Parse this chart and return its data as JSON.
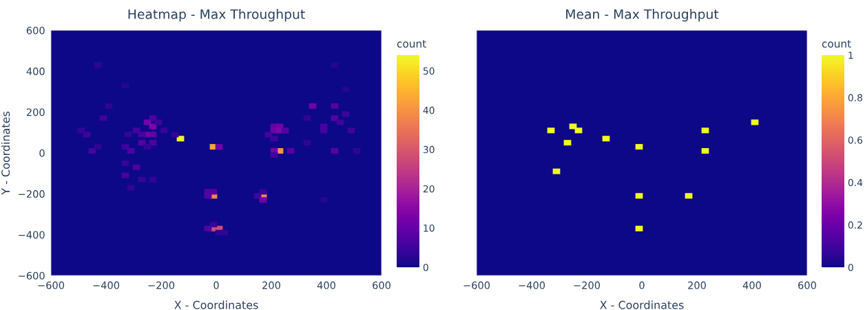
{
  "chart_data": [
    {
      "type": "scatter",
      "title": "Heatmap - Max Throughput",
      "xlabel": "X - Coordinates",
      "ylabel": "Y - Coordinates",
      "clabel": "count",
      "marker": "square",
      "grid": false,
      "legend": false,
      "xlim": [
        -600,
        600
      ],
      "ylim": [
        -600,
        600
      ],
      "xticks": [
        {
          "value": -600,
          "label": "−600"
        },
        {
          "value": -400,
          "label": "−400"
        },
        {
          "value": -200,
          "label": "−200"
        },
        0,
        200,
        400,
        600
      ],
      "yticks": [
        {
          "value": -600,
          "label": "−600"
        },
        {
          "value": -400,
          "label": "−400"
        },
        {
          "value": -200,
          "label": "−200"
        },
        0,
        200,
        400,
        600
      ],
      "clim": [
        0,
        54
      ],
      "cticks": [
        0,
        10,
        20,
        30,
        40,
        50
      ],
      "x": [
        -130,
        -10,
        10,
        230,
        210,
        270,
        210,
        230,
        210,
        230,
        250,
        190,
        210,
        210,
        350,
        430,
        430,
        390,
        390,
        470,
        490,
        450,
        430,
        510,
        330,
        470,
        330,
        -10,
        -30,
        -30,
        -10,
        170,
        150,
        170,
        170,
        390,
        -10,
        10,
        -30,
        -10,
        10,
        30,
        430,
        -250,
        -230,
        -230,
        -250,
        -230,
        -270,
        -270,
        -290,
        -310,
        -290,
        -330,
        -410,
        -450,
        -470,
        -490,
        -210,
        -190,
        -150,
        -430,
        -330,
        -390,
        -230,
        -320,
        -330,
        -250,
        -330,
        -270,
        -310,
        -230,
        -430
      ],
      "values": [
        70,
        30,
        30,
        10,
        10,
        10,
        130,
        130,
        110,
        110,
        110,
        90,
        70,
        -10,
        230,
        230,
        170,
        130,
        110,
        190,
        110,
        150,
        10,
        10,
        50,
        310,
        170,
        -210,
        -210,
        -190,
        -190,
        -210,
        -210,
        -190,
        -230,
        -230,
        -370,
        -370,
        -370,
        -350,
        -390,
        -390,
        430,
        150,
        130,
        170,
        90,
        90,
        50,
        90,
        110,
        10,
        -70,
        -110,
        170,
        10,
        90,
        110,
        150,
        110,
        90,
        430,
        330,
        230,
        50,
        90,
        30,
        30,
        -50,
        -130,
        -170,
        -130,
        30
      ],
      "cvalues": [
        53,
        43,
        12,
        40,
        12,
        8,
        10,
        12,
        12,
        14,
        8,
        6,
        5,
        5,
        12,
        8,
        8,
        6,
        6,
        5,
        5,
        5,
        8,
        3,
        3,
        2,
        3,
        38,
        8,
        8,
        8,
        38,
        5,
        4,
        12,
        2,
        28,
        28,
        8,
        4,
        3,
        3,
        2,
        12,
        14,
        7,
        12,
        10,
        8,
        6,
        6,
        7,
        7,
        6,
        5,
        6,
        5,
        4,
        5,
        4,
        4,
        3,
        2,
        3,
        7,
        4,
        5,
        4,
        4,
        4,
        3,
        3,
        3
      ]
    },
    {
      "type": "scatter",
      "title": "Mean - Max Throughput",
      "xlabel": "X - Coordinates",
      "clabel": "count",
      "marker": "square",
      "grid": false,
      "legend": false,
      "tick_labels": "x",
      "xlim": [
        -600,
        600
      ],
      "ylim": [
        -600,
        600
      ],
      "xticks": [
        {
          "value": -600,
          "label": "−600"
        },
        {
          "value": -400,
          "label": "−400"
        },
        {
          "value": -200,
          "label": "−200"
        },
        0,
        200,
        400,
        600
      ],
      "clim": [
        0,
        1
      ],
      "cticks": [
        0,
        0.2,
        0.4,
        0.6,
        0.8,
        1
      ],
      "x": [
        410,
        -330,
        -250,
        -230,
        -130,
        -270,
        -10,
        230,
        230,
        -310,
        -10,
        170,
        -10
      ],
      "values": [
        150,
        110,
        130,
        110,
        70,
        50,
        30,
        110,
        10,
        -90,
        -210,
        -210,
        -370
      ],
      "cvalues": [
        1,
        1,
        1,
        1,
        1,
        1,
        1,
        1,
        1,
        1,
        1,
        1,
        1
      ]
    }
  ]
}
